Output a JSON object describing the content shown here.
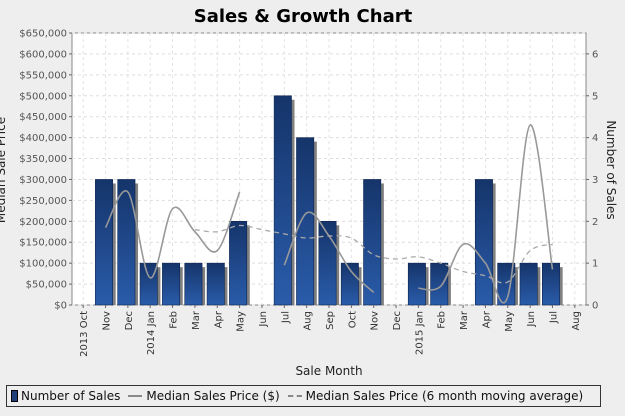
{
  "chart_data": {
    "type": "bar",
    "title": "Sales & Growth Chart",
    "xlabel": "Sale Month",
    "ylabel_left": "Median Sale Price",
    "ylabel_right": "Number of Sales",
    "categories": [
      "Oct",
      "Nov",
      "Dec",
      "Jan",
      "Feb",
      "Mar",
      "Apr",
      "May",
      "Jun",
      "Jul",
      "Aug",
      "Sep",
      "Oct",
      "Nov",
      "Dec",
      "Jan",
      "Feb",
      "Mar",
      "Apr",
      "May",
      "Jun",
      "Jul",
      "Aug"
    ],
    "year_markers": [
      {
        "index": 0,
        "label": "2013"
      },
      {
        "index": 3,
        "label": "2014"
      },
      {
        "index": 15,
        "label": "2015"
      }
    ],
    "left_axis": {
      "ylim": [
        0,
        650000
      ],
      "ticks": [
        {
          "v": 0,
          "label": "$0"
        },
        {
          "v": 50000,
          "label": "$50,000"
        },
        {
          "v": 100000,
          "label": "$100,000"
        },
        {
          "v": 150000,
          "label": "$150,000"
        },
        {
          "v": 200000,
          "label": "$200,000"
        },
        {
          "v": 250000,
          "label": "$250,000"
        },
        {
          "v": 300000,
          "label": "$300,000"
        },
        {
          "v": 350000,
          "label": "$350,000"
        },
        {
          "v": 400000,
          "label": "$400,000"
        },
        {
          "v": 450000,
          "label": "$450,000"
        },
        {
          "v": 500000,
          "label": "$500,000"
        },
        {
          "v": 550000,
          "label": "$550,000"
        },
        {
          "v": 600000,
          "label": "$600,000"
        },
        {
          "v": 650000,
          "label": "$650,000"
        }
      ]
    },
    "right_axis": {
      "ylim": [
        0,
        6.5
      ],
      "ticks": [
        0,
        1,
        2,
        3,
        4,
        5,
        6
      ]
    },
    "series": [
      {
        "name": "Number of Sales",
        "kind": "bar",
        "axis": "right",
        "color": "#1f4a8f",
        "values": [
          0,
          3,
          3,
          1,
          1,
          1,
          1,
          2,
          0,
          5,
          4,
          2,
          1,
          3,
          0,
          1,
          1,
          0,
          3,
          1,
          1,
          1,
          0
        ]
      },
      {
        "name": "Median Sales Price ($)",
        "kind": "line",
        "axis": "left",
        "color": "#999999",
        "values": [
          null,
          185000,
          270000,
          65000,
          230000,
          175000,
          130000,
          270000,
          null,
          95000,
          220000,
          165000,
          80000,
          30000,
          null,
          40000,
          45000,
          145000,
          100000,
          20000,
          430000,
          85000,
          null
        ]
      },
      {
        "name": "Median Sales Price (6 month moving average)",
        "kind": "dashed-line",
        "axis": "left",
        "color": "#aaaaaa",
        "values": [
          null,
          null,
          null,
          null,
          null,
          180000,
          175000,
          190000,
          180000,
          170000,
          160000,
          165000,
          160000,
          120000,
          110000,
          115000,
          100000,
          80000,
          70000,
          55000,
          130000,
          145000,
          null
        ]
      }
    ],
    "grid": true,
    "legend_position": "bottom"
  },
  "legend": {
    "bars": "Number of Sales",
    "line": "Median Sales Price ($)",
    "dashed": "Median Sales Price (6 month moving average)"
  }
}
